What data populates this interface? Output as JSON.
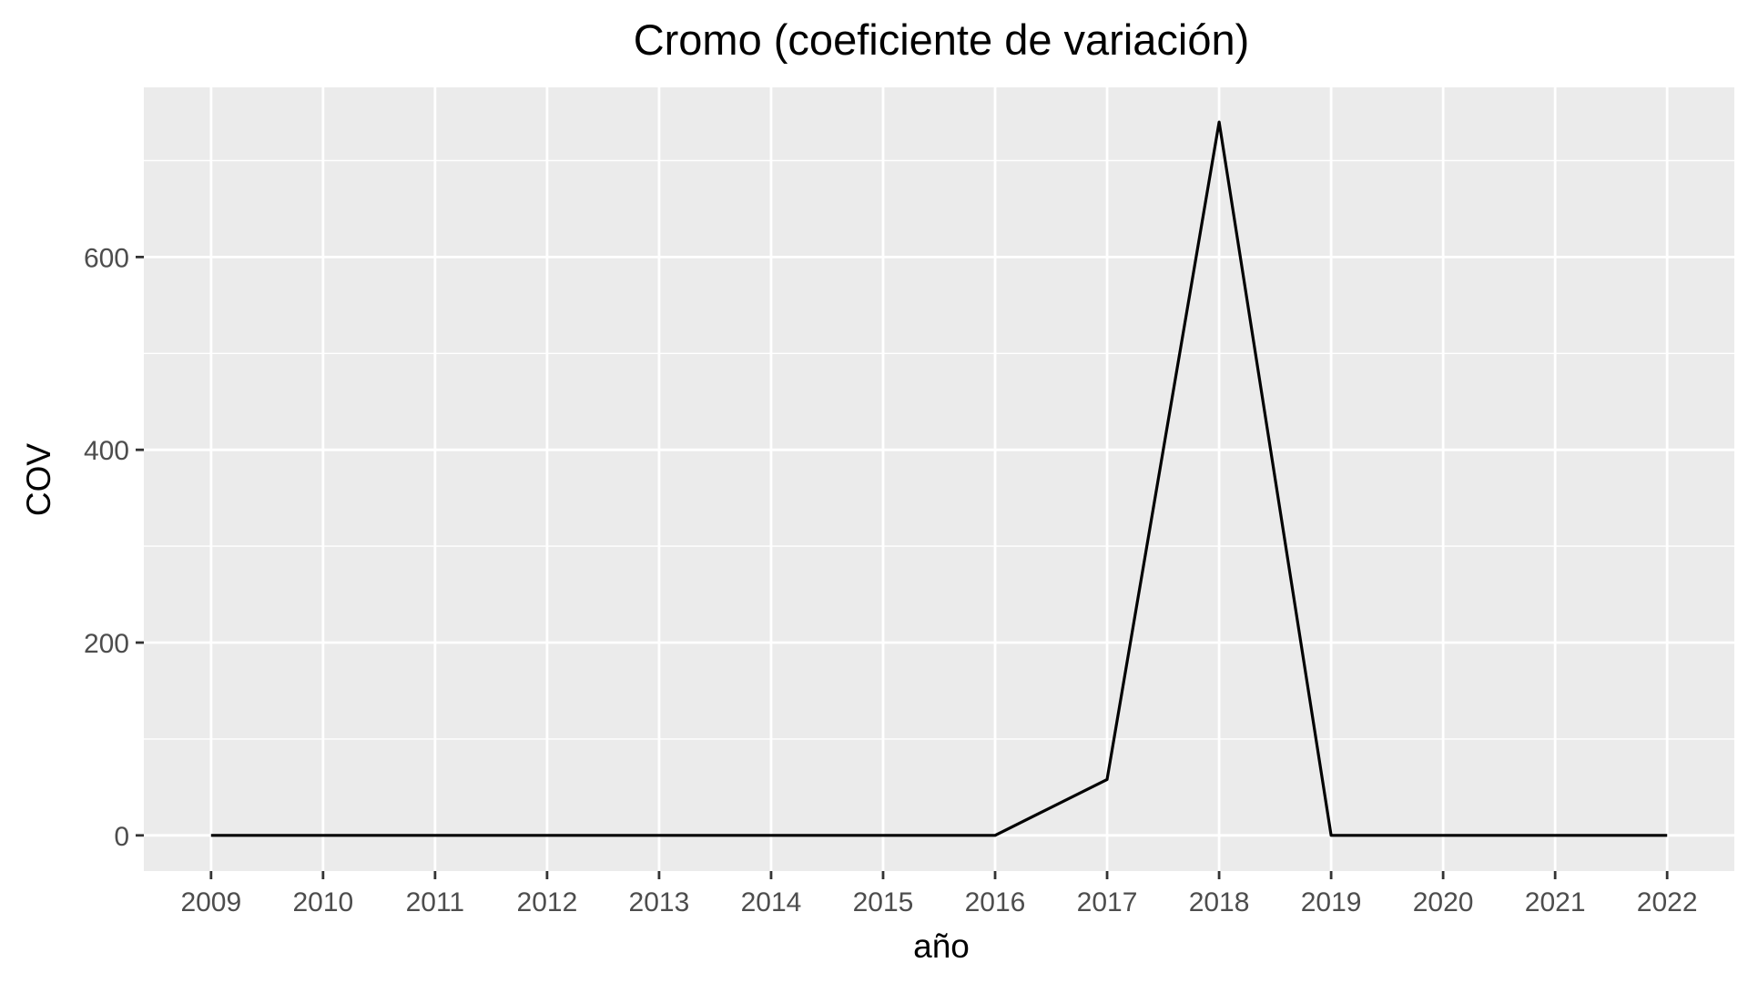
{
  "chart_data": {
    "type": "line",
    "title": "Cromo (coeficiente de variación)",
    "xlabel": "año",
    "ylabel": "COV",
    "x": [
      2009,
      2010,
      2011,
      2012,
      2013,
      2014,
      2015,
      2016,
      2017,
      2018,
      2019,
      2020,
      2021,
      2022
    ],
    "series": [
      {
        "values": [
          0,
          0,
          0,
          0,
          0,
          0,
          0,
          0,
          58,
          740,
          0,
          0,
          0,
          0
        ]
      }
    ],
    "xlim": [
      2008.4,
      2022.6
    ],
    "ylim": [
      -37,
      776
    ],
    "yticks": [
      0,
      200,
      400,
      600
    ],
    "xticks": [
      "2009",
      "2010",
      "2011",
      "2012",
      "2013",
      "2014",
      "2015",
      "2016",
      "2017",
      "2018",
      "2019",
      "2020",
      "2021",
      "2022"
    ],
    "grid": true,
    "legend": "none",
    "colors": {
      "panel_background": "#ebebeb",
      "grid": "#ffffff",
      "line": "#000000",
      "tick_text": "#4d4d4d",
      "tick_mark": "#333333"
    }
  }
}
